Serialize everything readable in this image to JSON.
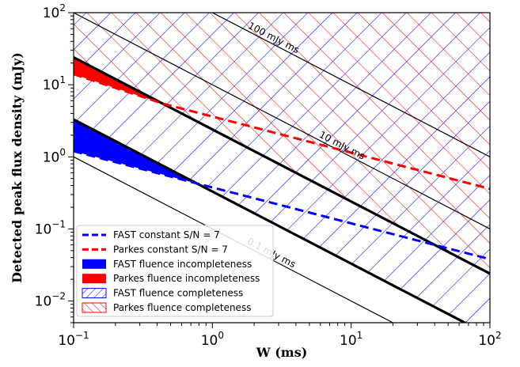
{
  "chart_data": {
    "type": "line",
    "xscale": "log",
    "yscale": "log",
    "xlim": [
      0.1,
      100
    ],
    "ylim": [
      0.005,
      100
    ],
    "xlabel": "W (ms)",
    "ylabel": "Detected peak flux density (mJy)",
    "x_ticks": [
      {
        "value": 0.1,
        "base": "10",
        "exp": "−1"
      },
      {
        "value": 1,
        "base": "10",
        "exp": "0"
      },
      {
        "value": 10,
        "base": "10",
        "exp": "1"
      },
      {
        "value": 100,
        "base": "10",
        "exp": "2"
      }
    ],
    "y_ticks": [
      {
        "value": 0.01,
        "base": "10",
        "exp": "−2"
      },
      {
        "value": 0.1,
        "base": "10",
        "exp": "−1"
      },
      {
        "value": 1,
        "base": "10",
        "exp": "0"
      },
      {
        "value": 10,
        "base": "10",
        "exp": "1"
      },
      {
        "value": 100,
        "base": "10",
        "exp": "2"
      }
    ],
    "fluence_lines": [
      {
        "label": "100 mJy ms",
        "fluence": 100,
        "label_x": 2.7,
        "color": "#000000"
      },
      {
        "label": "10 mJy ms",
        "fluence": 10,
        "label_x": 8.4,
        "color": "#000000"
      },
      {
        "label": "0.1 mJy ms",
        "fluence": 0.1,
        "label_x": 2.6,
        "color": "#000000"
      }
    ],
    "fluence_limits": [
      {
        "name": "FAST",
        "fluence": 0.33,
        "color": "#0000ff"
      },
      {
        "name": "Parkes",
        "fluence": 2.4,
        "color": "#ff0000"
      }
    ],
    "series": [
      {
        "name": "FAST constant S/N = 7",
        "x": [
          0.1,
          0.8,
          100
        ],
        "y": [
          1.2,
          0.42,
          0.038
        ],
        "color": "#0000ff",
        "style": "dashed"
      },
      {
        "name": "Parkes constant S/N = 7",
        "x": [
          0.1,
          0.45,
          100
        ],
        "y": [
          14,
          5.4,
          0.36
        ],
        "color": "#ff0000",
        "style": "dashed"
      }
    ],
    "legend": {
      "position": "lower-left",
      "entries": [
        {
          "label": "FAST constant S/N = 7",
          "kind": "dashed-line",
          "color": "#0000ff"
        },
        {
          "label": "Parkes constant S/N = 7",
          "kind": "dashed-line",
          "color": "#ff0000"
        },
        {
          "label": "FAST fluence incompleteness",
          "kind": "fill",
          "color": "#0000ff"
        },
        {
          "label": "Parkes fluence incompleteness",
          "kind": "fill",
          "color": "#ff0000"
        },
        {
          "label": "FAST fluence completeness",
          "kind": "hatch",
          "color": "#0000ff"
        },
        {
          "label": "Parkes fluence completeness",
          "kind": "hatch",
          "color": "#ff0000"
        }
      ]
    }
  }
}
